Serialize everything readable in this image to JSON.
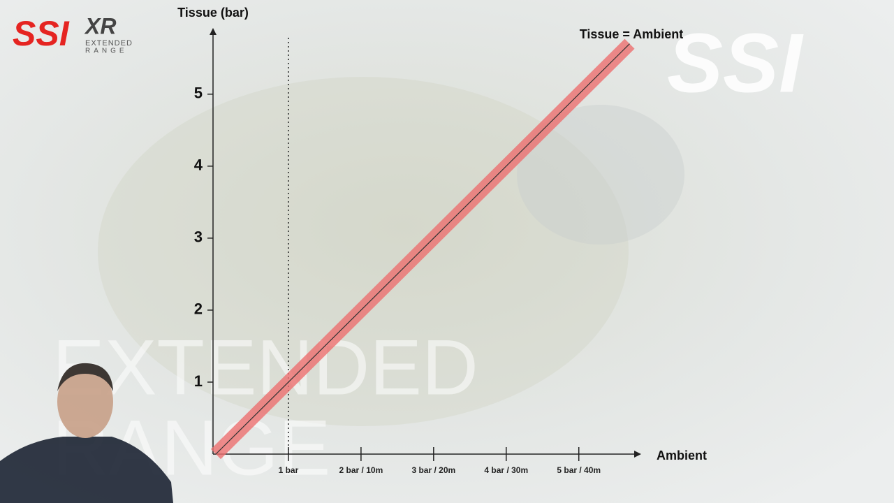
{
  "chart_data": {
    "type": "line",
    "y_label": "Tissue (bar)",
    "x_label": "Ambient",
    "annotation": "Tissue = Ambient",
    "x": [
      0,
      5.7
    ],
    "series": [
      {
        "name": "Tissue = Ambient",
        "color": "#ec6f6f",
        "values": [
          0,
          5.7
        ]
      }
    ],
    "xlim": [
      0,
      5.83
    ],
    "ylim": [
      0,
      5.92
    ],
    "xticks": [
      {
        "value": 1,
        "label": "1 bar"
      },
      {
        "value": 2,
        "label": "2 bar / 10m"
      },
      {
        "value": 3,
        "label": "3 bar / 20m"
      },
      {
        "value": 4,
        "label": "4 bar / 30m"
      },
      {
        "value": 5,
        "label": "5 bar / 40m"
      }
    ],
    "yticks": [
      1,
      2,
      3,
      4,
      5
    ],
    "reference_x": 1,
    "grid": false
  },
  "branding": {
    "logo": "SSI",
    "xr": "XR",
    "xr_sub1": "EXTENDED",
    "xr_sub2": "RANGE",
    "logo_right": "SSI",
    "watermark_1": "EXTENDED",
    "watermark_2": "RANGE"
  }
}
